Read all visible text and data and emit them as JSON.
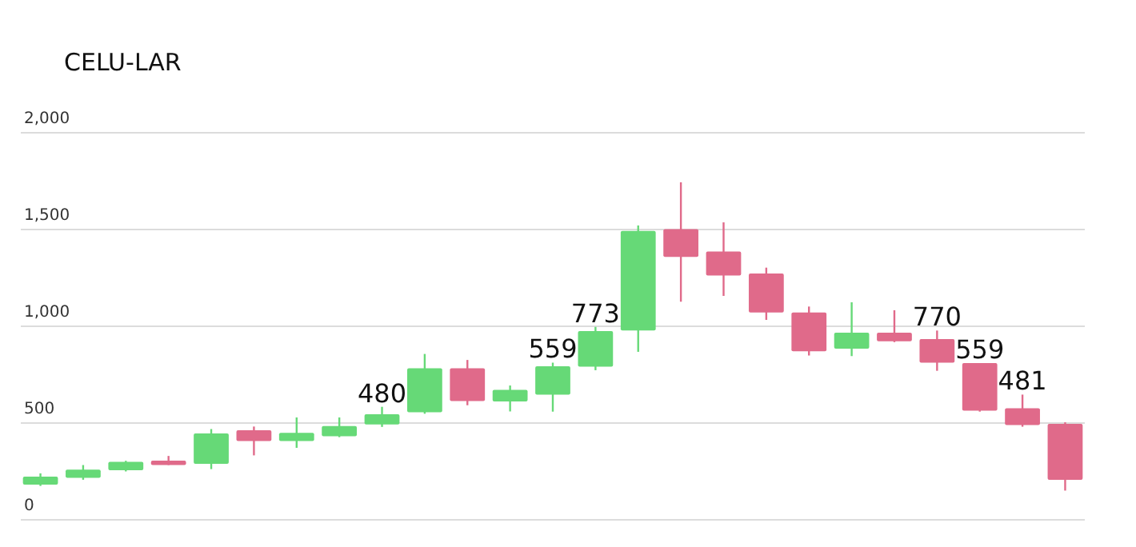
{
  "chart_data": {
    "type": "candlestick",
    "title": "CELU-LAR",
    "categories": [
      null,
      null,
      null,
      null,
      null,
      null,
      null,
      null,
      null,
      null,
      null,
      null,
      null,
      null,
      null,
      null,
      null,
      null,
      null,
      null,
      null,
      null,
      null,
      null,
      null
    ],
    "ohlc": [
      [
        182,
        240,
        175,
        223
      ],
      [
        217,
        283,
        207,
        259
      ],
      [
        256,
        305,
        250,
        300
      ],
      [
        306,
        330,
        283,
        283
      ],
      [
        289,
        469,
        262,
        446
      ],
      [
        463,
        482,
        333,
        407
      ],
      [
        407,
        529,
        372,
        449
      ],
      [
        432,
        529,
        427,
        485
      ],
      [
        493,
        584,
        480,
        545
      ],
      [
        556,
        857,
        548,
        783
      ],
      [
        783,
        826,
        592,
        614
      ],
      [
        612,
        694,
        560,
        672
      ],
      [
        647,
        812,
        559,
        793
      ],
      [
        791,
        997,
        773,
        975
      ],
      [
        978,
        1521,
        868,
        1493
      ],
      [
        1502,
        1744,
        1127,
        1358
      ],
      [
        1386,
        1537,
        1157,
        1262
      ],
      [
        1273,
        1303,
        1033,
        1071
      ],
      [
        1071,
        1102,
        849,
        871
      ],
      [
        884,
        1124,
        846,
        967
      ],
      [
        967,
        1083,
        918,
        923
      ],
      [
        934,
        978,
        770,
        812
      ],
      [
        810,
        810,
        559,
        564
      ],
      [
        576,
        647,
        481,
        490
      ],
      [
        496,
        504,
        151,
        207
      ]
    ],
    "value_labels": [
      null,
      null,
      null,
      null,
      null,
      null,
      null,
      null,
      "480",
      null,
      null,
      null,
      "559",
      "773",
      null,
      null,
      null,
      null,
      null,
      null,
      null,
      "770",
      "559",
      "481",
      null
    ],
    "colors": [
      "#66d977",
      "#66d977",
      "#66d977",
      "#e06a8a",
      "#66d977",
      "#e06a8a",
      "#66d977",
      "#66d977",
      "#66d977",
      "#66d977",
      "#e06a8a",
      "#66d977",
      "#66d977",
      "#66d977",
      "#66d977",
      "#e06a8a",
      "#e06a8a",
      "#e06a8a",
      "#e06a8a",
      "#66d977",
      "#e06a8a",
      "#e06a8a",
      "#e06a8a",
      "#e06a8a",
      "#e06a8a"
    ],
    "ylim": [
      0,
      2000
    ],
    "yticks": [
      0,
      {
        "value": 500,
        "label": "500"
      },
      {
        "value": 1000,
        "label": "1,000"
      },
      {
        "value": 1500,
        "label": "1,500"
      },
      {
        "value": 2000,
        "label": "2,000"
      }
    ],
    "grid": "y"
  }
}
